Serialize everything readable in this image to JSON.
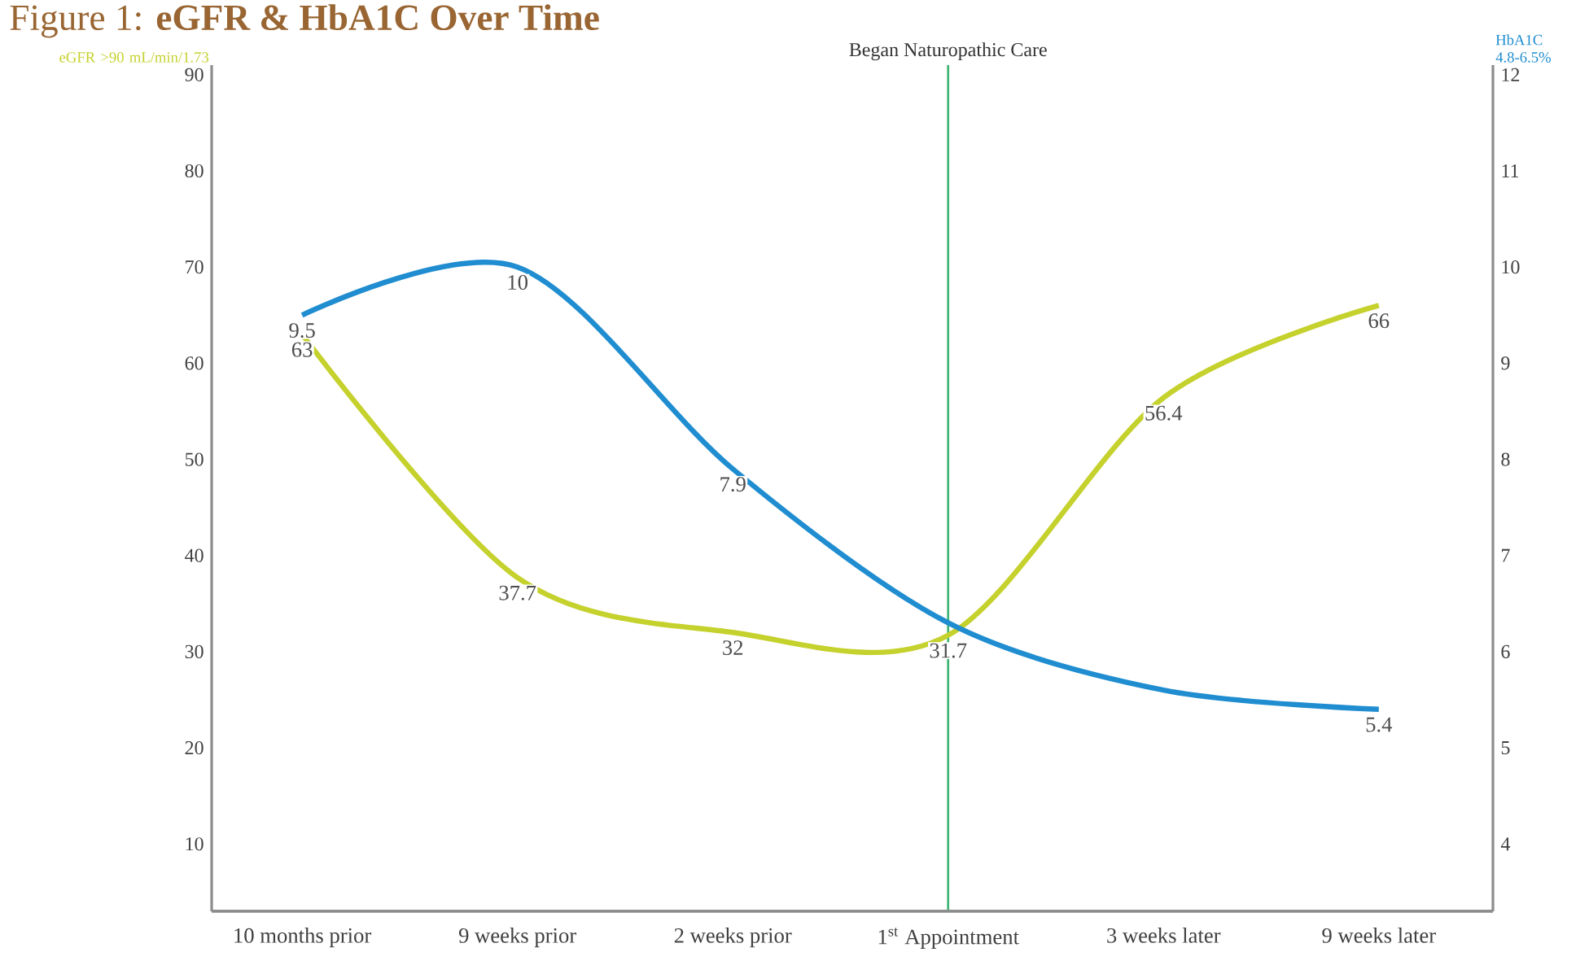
{
  "chart_data": {
    "type": "line",
    "title": "Figure 1: **eGFR & HbA1C Over Time**",
    "ylabel": "eGFR >90 mL/min/1.73",
    "y2label": "HbA1C 4.8-6.5%",
    "categories": [
      "10 months prior",
      "9 weeks prior",
      "2 weeks prior",
      "1$^{st}$ Appointment",
      "3 weeks later",
      "9 weeks later"
    ],
    "series": [
      {
        "color": "#c5d12c",
        "values": [
          63,
          37.7,
          32,
          31.7,
          56.4,
          66
        ],
        "value_labels": [
          "63",
          "37.7",
          "32",
          "31.7",
          "56.4",
          "66"
        ]
      },
      {
        "color": "#1f8dd0",
        "axis": "y2",
        "values": [
          9.5,
          10,
          7.9,
          6.3,
          5.6,
          5.4
        ],
        "value_labels": [
          "9.5",
          "10",
          "7.9",
          null,
          null,
          "5.4"
        ]
      }
    ],
    "ylim": [
      3,
      91
    ],
    "yticks": [
      10,
      20,
      30,
      40,
      50,
      60,
      70,
      80,
      90
    ],
    "y2lim": [
      3.3,
      12.1
    ],
    "y2ticks": [
      4,
      5,
      6,
      7,
      8,
      9,
      10,
      11,
      12
    ],
    "ref_lines": [
      {
        "axis": "x",
        "value": "1$^{st}$ Appointment",
        "label": "Began Naturopathic Care",
        "color": "#3cb371"
      }
    ],
    "grid": false,
    "marker": "none",
    "line_style": "solid"
  }
}
